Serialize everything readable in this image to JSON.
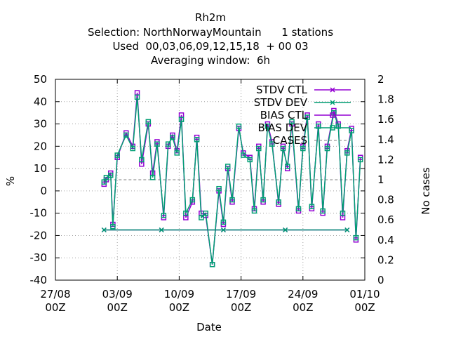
{
  "title_lines": [
    "Rh2m",
    "Selection: NorthNorwayMountain      1 stations",
    "Used  00,03,06,09,12,15,18  + 00 03",
    "Averaging window:  6h"
  ],
  "colors": {
    "stdv_ctl": "#9400d3",
    "stdv_dev": "#009e73",
    "bias_ctl": "#9400d3",
    "bias_dev": "#009e73",
    "cases": "#808080"
  },
  "chart_data": {
    "type": "line",
    "title": "Rh2m",
    "xlabel": "Date",
    "ylabel": "%",
    "y2label": "No cases",
    "xlim": [
      "2021-08-27 00Z",
      "2021-10-01 00Z"
    ],
    "ylim": [
      -40,
      50
    ],
    "y2lim": [
      0,
      2
    ],
    "yticks": [
      "-40",
      "-30",
      "-20",
      "-10",
      "0",
      "10",
      "20",
      "30",
      "40",
      "50"
    ],
    "y2ticks": [
      "0",
      "0.2",
      "0.4",
      "0.6",
      "0.8",
      "1",
      "1.2",
      "1.4",
      "1.6",
      "1.8",
      "2"
    ],
    "xticks": [
      {
        "date": "2021-08-27",
        "label": [
          "27/08",
          "00Z"
        ]
      },
      {
        "date": "2021-09-03",
        "label": [
          "03/09",
          "00Z"
        ]
      },
      {
        "date": "2021-09-10",
        "label": [
          "10/09",
          "00Z"
        ]
      },
      {
        "date": "2021-09-17",
        "label": [
          "17/09",
          "00Z"
        ]
      },
      {
        "date": "2021-09-24",
        "label": [
          "24/09",
          "00Z"
        ]
      },
      {
        "date": "2021-10-01",
        "label": [
          "01/10",
          "00Z"
        ]
      }
    ],
    "grid": true,
    "legend_position": "top-right",
    "series": [
      {
        "name": "STDV CTL",
        "marker": "x",
        "color": "#9400d3",
        "x": [
          "2021-09-01 12Z",
          "2021-09-08 00Z",
          "2021-09-15 00Z",
          "2021-09-22 00Z",
          "2021-09-29 00Z"
        ],
        "values": [
          0.5,
          0.5,
          0.5,
          0.5,
          0.5
        ]
      },
      {
        "name": "STDV DEV",
        "marker": "x",
        "color": "#009e73",
        "x": [
          "2021-09-01 12Z",
          "2021-09-08 00Z",
          "2021-09-15 00Z",
          "2021-09-22 00Z",
          "2021-09-29 00Z"
        ],
        "values": [
          0.5,
          0.5,
          0.5,
          0.5,
          0.5
        ]
      },
      {
        "name": "BIAS CTL",
        "marker": "square",
        "color": "#9400d3",
        "x": [
          "2021-09-01 12Z",
          "2021-09-01 18Z",
          "2021-09-02 06Z",
          "2021-09-02 12Z",
          "2021-09-03 00Z",
          "2021-09-04 00Z",
          "2021-09-04 18Z",
          "2021-09-05 06Z",
          "2021-09-05 18Z",
          "2021-09-06 12Z",
          "2021-09-07 00Z",
          "2021-09-07 12Z",
          "2021-09-08 06Z",
          "2021-09-08 18Z",
          "2021-09-09 06Z",
          "2021-09-09 18Z",
          "2021-09-10 06Z",
          "2021-09-10 18Z",
          "2021-09-11 12Z",
          "2021-09-12 00Z",
          "2021-09-12 12Z",
          "2021-09-13 00Z",
          "2021-09-13 18Z",
          "2021-09-14 12Z",
          "2021-09-15 00Z",
          "2021-09-15 12Z",
          "2021-09-16 00Z",
          "2021-09-16 18Z",
          "2021-09-17 06Z",
          "2021-09-18 00Z",
          "2021-09-18 12Z",
          "2021-09-19 00Z",
          "2021-09-19 12Z",
          "2021-09-20 00Z",
          "2021-09-20 12Z",
          "2021-09-21 06Z",
          "2021-09-21 18Z",
          "2021-09-22 06Z",
          "2021-09-22 18Z",
          "2021-09-23 12Z",
          "2021-09-24 00Z",
          "2021-09-24 12Z",
          "2021-09-25 00Z",
          "2021-09-25 18Z",
          "2021-09-26 06Z",
          "2021-09-26 18Z",
          "2021-09-27 12Z",
          "2021-09-28 00Z",
          "2021-09-28 12Z",
          "2021-09-29 00Z",
          "2021-09-29 12Z",
          "2021-09-30 00Z",
          "2021-09-30 12Z"
        ],
        "values": [
          3,
          5,
          8,
          -15,
          15,
          26,
          20,
          44,
          12,
          30,
          8,
          22,
          -12,
          20,
          25,
          18,
          34,
          -12,
          -5,
          24,
          -10,
          -11,
          -33,
          0,
          -15,
          10,
          -5,
          28,
          17,
          15,
          -8,
          20,
          -5,
          30,
          22,
          -6,
          20,
          10,
          30,
          -9,
          20,
          34,
          -8,
          30,
          -10,
          20,
          36,
          30,
          -12,
          18,
          28,
          -22,
          15
        ]
      },
      {
        "name": "BIAS DEV",
        "marker": "square",
        "color": "#009e73",
        "x": [
          "2021-09-01 12Z",
          "2021-09-01 18Z",
          "2021-09-02 06Z",
          "2021-09-02 12Z",
          "2021-09-03 00Z",
          "2021-09-04 00Z",
          "2021-09-04 18Z",
          "2021-09-05 06Z",
          "2021-09-05 18Z",
          "2021-09-06 12Z",
          "2021-09-07 00Z",
          "2021-09-07 12Z",
          "2021-09-08 06Z",
          "2021-09-08 18Z",
          "2021-09-09 06Z",
          "2021-09-09 18Z",
          "2021-09-10 06Z",
          "2021-09-10 18Z",
          "2021-09-11 12Z",
          "2021-09-12 00Z",
          "2021-09-12 12Z",
          "2021-09-13 00Z",
          "2021-09-13 18Z",
          "2021-09-14 12Z",
          "2021-09-15 00Z",
          "2021-09-15 12Z",
          "2021-09-16 00Z",
          "2021-09-16 18Z",
          "2021-09-17 06Z",
          "2021-09-18 00Z",
          "2021-09-18 12Z",
          "2021-09-19 00Z",
          "2021-09-19 12Z",
          "2021-09-20 00Z",
          "2021-09-20 12Z",
          "2021-09-21 06Z",
          "2021-09-21 18Z",
          "2021-09-22 06Z",
          "2021-09-22 18Z",
          "2021-09-23 12Z",
          "2021-09-24 00Z",
          "2021-09-24 12Z",
          "2021-09-25 00Z",
          "2021-09-25 18Z",
          "2021-09-26 06Z",
          "2021-09-26 18Z",
          "2021-09-27 12Z",
          "2021-09-28 00Z",
          "2021-09-28 12Z",
          "2021-09-29 00Z",
          "2021-09-29 12Z",
          "2021-09-30 00Z",
          "2021-09-30 12Z"
        ],
        "values": [
          4,
          6,
          7,
          -16,
          16,
          25,
          19,
          42,
          14,
          31,
          6,
          21,
          -11,
          21,
          24,
          17,
          32,
          -10,
          -4,
          23,
          -12,
          -10,
          -33,
          1,
          -14,
          11,
          -4,
          29,
          16,
          14,
          -9,
          19,
          -4,
          29,
          21,
          -5,
          19,
          11,
          31,
          -8,
          19,
          33,
          -7,
          29,
          -9,
          19,
          35,
          29,
          -10,
          17,
          27,
          -21,
          14
        ]
      },
      {
        "name": "CASES",
        "marker": "none",
        "dash": true,
        "color": "#808080",
        "x": [
          "2021-09-01 12Z",
          "2021-09-30 18Z"
        ],
        "values": [
          1,
          1
        ]
      }
    ]
  }
}
